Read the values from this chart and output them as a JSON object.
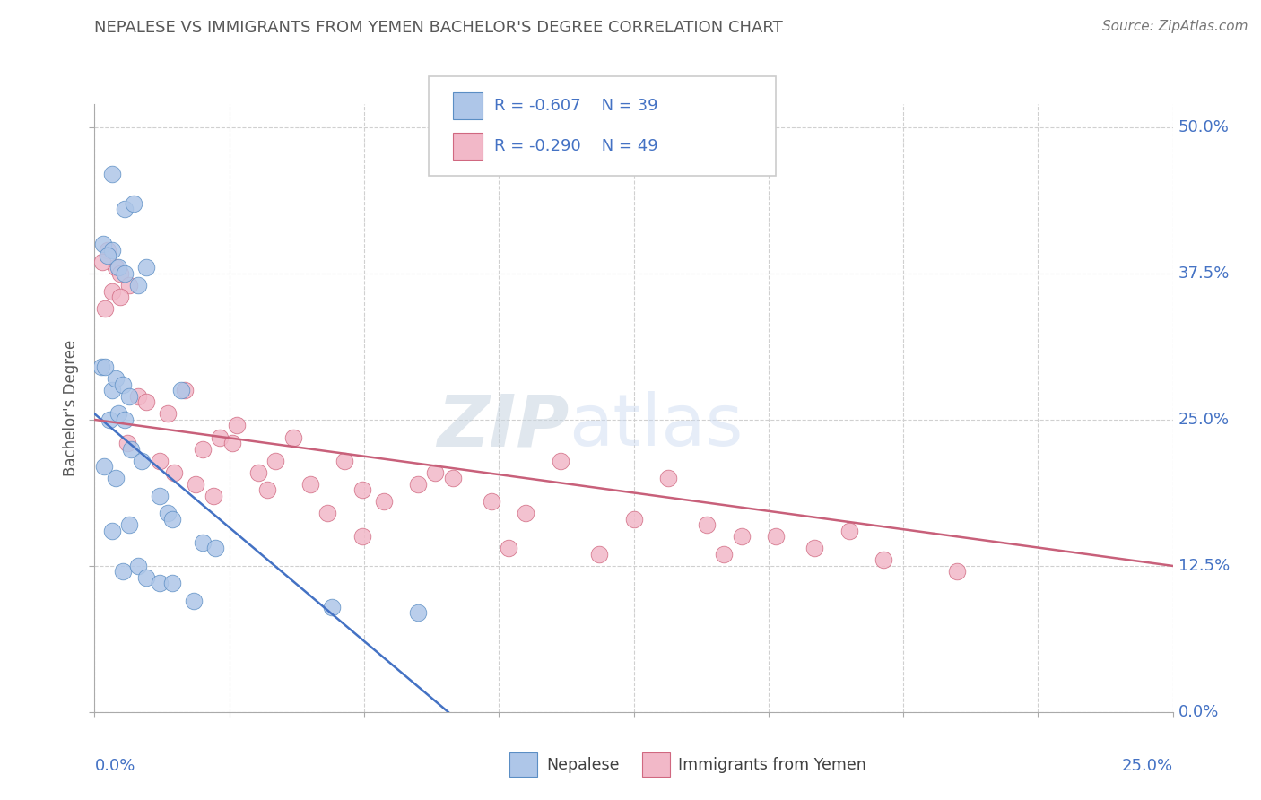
{
  "title": "NEPALESE VS IMMIGRANTS FROM YEMEN BACHELOR'S DEGREE CORRELATION CHART",
  "source": "Source: ZipAtlas.com",
  "ylabel": "Bachelor's Degree",
  "ytick_values": [
    0.0,
    12.5,
    25.0,
    37.5,
    50.0
  ],
  "xlim": [
    0,
    25
  ],
  "ylim": [
    0,
    52
  ],
  "blue_R": "-0.607",
  "blue_N": "39",
  "pink_R": "-0.290",
  "pink_N": "49",
  "nepalese_color": "#aec6e8",
  "yemen_color": "#f2b8c8",
  "nepalese_edge_color": "#5b8ec4",
  "yemen_edge_color": "#d06880",
  "nepalese_line_color": "#4472c4",
  "yemen_line_color": "#c8607a",
  "legend_label_blue": "Nepalese",
  "legend_label_pink": "Immigrants from Yemen",
  "watermark_zip": "ZIP",
  "watermark_atlas": "atlas",
  "background_color": "#ffffff",
  "title_color": "#595959",
  "axis_label_color": "#4472c4",
  "nepalese_x": [
    0.4,
    0.7,
    0.9,
    0.2,
    0.4,
    0.3,
    0.55,
    0.7,
    1.0,
    1.2,
    0.15,
    0.4,
    0.5,
    0.65,
    0.8,
    0.25,
    2.0,
    0.35,
    0.55,
    0.7,
    0.85,
    1.1,
    0.22,
    0.5,
    1.5,
    1.7,
    1.8,
    0.4,
    0.8,
    2.5,
    2.8,
    0.65,
    1.0,
    1.2,
    1.5,
    1.8,
    2.3,
    5.5,
    7.5
  ],
  "nepalese_y": [
    46.0,
    43.0,
    43.5,
    40.0,
    39.5,
    39.0,
    38.0,
    37.5,
    36.5,
    38.0,
    29.5,
    27.5,
    28.5,
    28.0,
    27.0,
    29.5,
    27.5,
    25.0,
    25.5,
    25.0,
    22.5,
    21.5,
    21.0,
    20.0,
    18.5,
    17.0,
    16.5,
    15.5,
    16.0,
    14.5,
    14.0,
    12.0,
    12.5,
    11.5,
    11.0,
    11.0,
    9.5,
    9.0,
    8.5
  ],
  "yemen_x": [
    0.3,
    0.5,
    0.6,
    0.8,
    0.4,
    0.6,
    0.25,
    1.0,
    1.2,
    1.7,
    2.1,
    2.5,
    3.3,
    4.2,
    2.9,
    3.2,
    3.8,
    4.6,
    5.0,
    5.8,
    6.7,
    7.5,
    8.3,
    9.2,
    10.8,
    12.5,
    13.3,
    14.2,
    15.8,
    17.5,
    0.18,
    0.75,
    1.5,
    1.85,
    2.35,
    2.75,
    4.0,
    5.4,
    6.2,
    7.9,
    9.6,
    11.7,
    15.0,
    16.7,
    18.3,
    20.0,
    6.2,
    10.0,
    14.6
  ],
  "yemen_y": [
    39.5,
    38.0,
    37.5,
    36.5,
    36.0,
    35.5,
    34.5,
    27.0,
    26.5,
    25.5,
    27.5,
    22.5,
    24.5,
    21.5,
    23.5,
    23.0,
    20.5,
    23.5,
    19.5,
    21.5,
    18.0,
    19.5,
    20.0,
    18.0,
    21.5,
    16.5,
    20.0,
    16.0,
    15.0,
    15.5,
    38.5,
    23.0,
    21.5,
    20.5,
    19.5,
    18.5,
    19.0,
    17.0,
    15.0,
    20.5,
    14.0,
    13.5,
    15.0,
    14.0,
    13.0,
    12.0,
    19.0,
    17.0,
    13.5
  ],
  "blue_line_x": [
    0.0,
    8.2
  ],
  "blue_line_y": [
    25.5,
    0.0
  ],
  "pink_line_x": [
    0.0,
    25.0
  ],
  "pink_line_y": [
    25.0,
    12.5
  ]
}
